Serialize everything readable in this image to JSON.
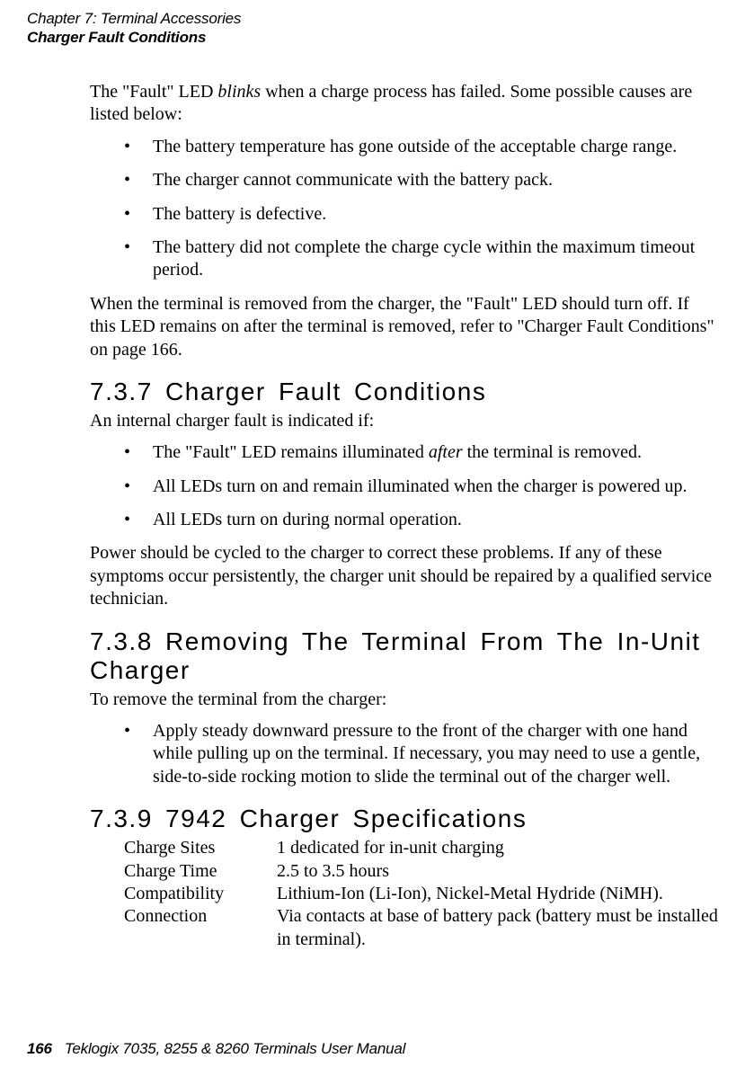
{
  "header": {
    "chapter": "Chapter 7: Terminal Accessories",
    "section": "Charger Fault Conditions"
  },
  "intro": {
    "p1_a": "The \"Fault\" LED ",
    "p1_b": "blinks",
    "p1_c": " when a charge process has failed. Some possible causes are listed below:",
    "bullets": [
      "The battery temperature has gone outside of the acceptable charge range.",
      "The charger cannot communicate with the battery pack.",
      "The battery is defective.",
      "The battery did not complete the charge cycle within the maximum timeout period."
    ],
    "p2": "When the terminal is removed from the charger, the \"Fault\" LED should turn off. If this LED remains on after the terminal is removed, refer to \"Charger Fault Conditions\" on page 166."
  },
  "s737": {
    "heading": "7.3.7  Charger Fault Conditions",
    "p1": "An internal charger fault is indicated if:",
    "bullets_a": "The \"Fault\" LED remains illuminated ",
    "bullets_b": "after",
    "bullets_c": " the terminal is removed.",
    "bullet2": "All LEDs turn on and remain illuminated when the charger is powered up.",
    "bullet3": "All LEDs turn on during normal operation.",
    "p2": "Power should be cycled to the charger to correct these problems. If any of these symptoms occur persistently, the charger unit should be repaired by a qualified service technician."
  },
  "s738": {
    "heading": "7.3.8  Removing The Terminal From The In-Unit Charger",
    "p1": "To remove the terminal from the charger:",
    "bullet1": "Apply steady downward pressure to the front of the charger with one hand while pulling up on the terminal. If necessary, you may need to use a gentle, side-to-side rocking motion to slide the terminal out of the charger well."
  },
  "s739": {
    "heading": "7.3.9  7942 Charger Specifications",
    "specs": [
      {
        "label": "Charge Sites",
        "value": "1 dedicated for in-unit charging"
      },
      {
        "label": "Charge Time",
        "value": "2.5 to 3.5 hours"
      },
      {
        "label": "Compatibility",
        "value": "Lithium-Ion (Li-Ion), Nickel-Metal Hydride (NiMH)."
      },
      {
        "label": "Connection",
        "value": "Via contacts at base of battery pack (battery must be installed in terminal)."
      }
    ]
  },
  "footer": {
    "page": "166",
    "text": "Teklogix 7035, 8255 & 8260 Terminals User Manual"
  }
}
